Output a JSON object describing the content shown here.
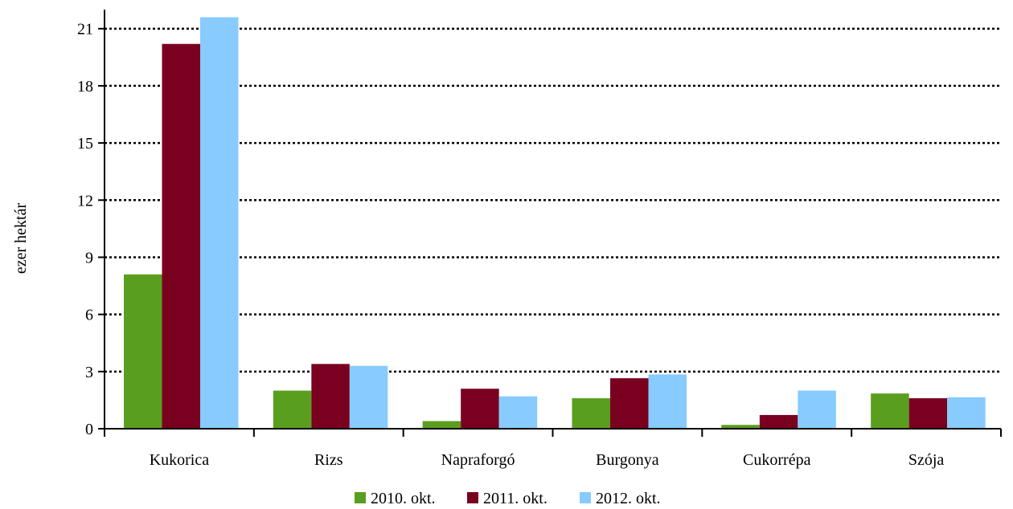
{
  "chart_data": {
    "type": "bar",
    "categories": [
      "Kukorica",
      "Rizs",
      "Napraforgó",
      "Burgonya",
      "Cukorrépa",
      "Szója"
    ],
    "series": [
      {
        "name": "2010. okt.",
        "color": "#5a9e1f",
        "values": [
          8.1,
          2.0,
          0.4,
          1.6,
          0.2,
          1.85
        ]
      },
      {
        "name": "2011. okt.",
        "color": "#7a0020",
        "values": [
          20.2,
          3.4,
          2.1,
          2.65,
          0.72,
          1.6
        ]
      },
      {
        "name": "2012. okt.",
        "color": "#87cbff",
        "values": [
          21.6,
          3.3,
          1.7,
          2.85,
          2.0,
          1.65
        ]
      }
    ],
    "ylabel": "ezer hektár",
    "xlabel": "",
    "ylim": [
      0,
      22
    ],
    "yticks": [
      0,
      3,
      6,
      9,
      12,
      15,
      18,
      21
    ],
    "grid": true,
    "grid_style": "dotted",
    "legend_position": "bottom-center"
  }
}
